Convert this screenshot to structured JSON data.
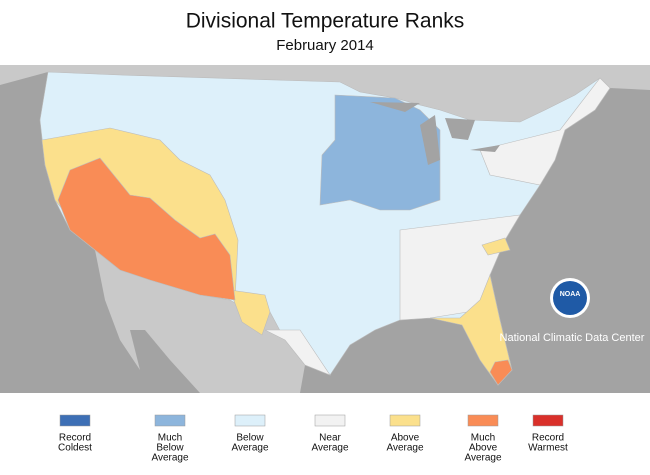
{
  "title": "Divisional Temperature Ranks",
  "subtitle": "February 2014",
  "logo": "NOAA",
  "credit": "National Climatic Data Center",
  "legend": [
    {
      "lines": [
        "Record",
        "Coldest"
      ],
      "color": "#3d6fb5"
    },
    {
      "lines": [
        "Much",
        "Below",
        "Average"
      ],
      "color": "#8db5dc"
    },
    {
      "lines": [
        "Below",
        "Average"
      ],
      "color": "#ddf0fa"
    },
    {
      "lines": [
        "Near",
        "Average"
      ],
      "color": "#f2f2f2"
    },
    {
      "lines": [
        "Above",
        "Average"
      ],
      "color": "#fbe08c"
    },
    {
      "lines": [
        "Much",
        "Above",
        "Average"
      ],
      "color": "#f98c56"
    },
    {
      "lines": [
        "Record",
        "Warmest"
      ],
      "color": "#d9302a"
    }
  ]
}
